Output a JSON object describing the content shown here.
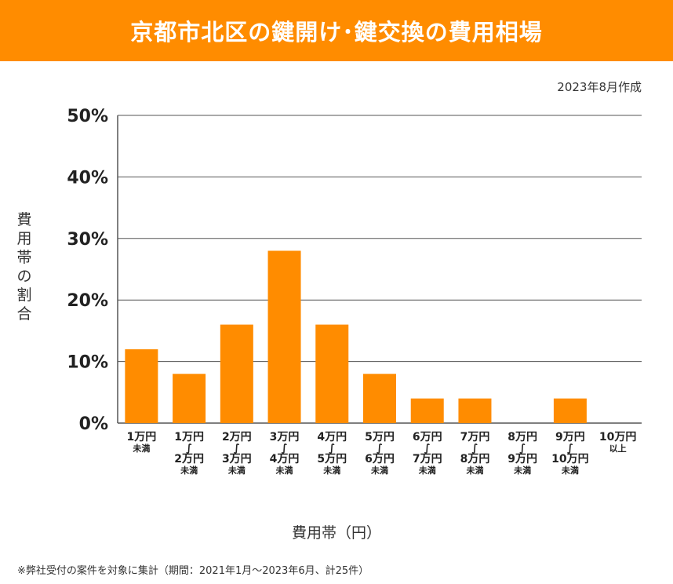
{
  "title": "京都市北区の鍵開け･鍵交換の費用相場",
  "date": "2023年8月作成",
  "footer": "※弊社受付の案件を対象に集計（期間：2021年1月～2023年6月、計25件）",
  "colors": {
    "accent": "#ff8c00",
    "bar": "#ff8c00",
    "grid": "#555555"
  },
  "chart_data": {
    "type": "bar",
    "ylabel": "費用帯の割合",
    "xlabel": "費用帯（円）",
    "ylim": [
      0,
      50
    ],
    "yticks": [
      "0%",
      "10%",
      "20%",
      "30%",
      "40%",
      "50%"
    ],
    "grid": true,
    "categories": [
      {
        "lines": [
          "1万円",
          "未満"
        ]
      },
      {
        "lines": [
          "1万円",
          "～",
          "2万円",
          "未満"
        ]
      },
      {
        "lines": [
          "2万円",
          "～",
          "3万円",
          "未満"
        ]
      },
      {
        "lines": [
          "3万円",
          "～",
          "4万円",
          "未満"
        ]
      },
      {
        "lines": [
          "4万円",
          "～",
          "5万円",
          "未満"
        ]
      },
      {
        "lines": [
          "5万円",
          "～",
          "6万円",
          "未満"
        ]
      },
      {
        "lines": [
          "6万円",
          "～",
          "7万円",
          "未満"
        ]
      },
      {
        "lines": [
          "7万円",
          "～",
          "8万円",
          "未満"
        ]
      },
      {
        "lines": [
          "8万円",
          "～",
          "9万円",
          "未満"
        ]
      },
      {
        "lines": [
          "9万円",
          "～",
          "10万円",
          "未満"
        ]
      },
      {
        "lines": [
          "10万円",
          "以上"
        ]
      }
    ],
    "values": [
      12,
      8,
      16,
      28,
      16,
      8,
      4,
      4,
      0,
      4,
      0
    ]
  }
}
